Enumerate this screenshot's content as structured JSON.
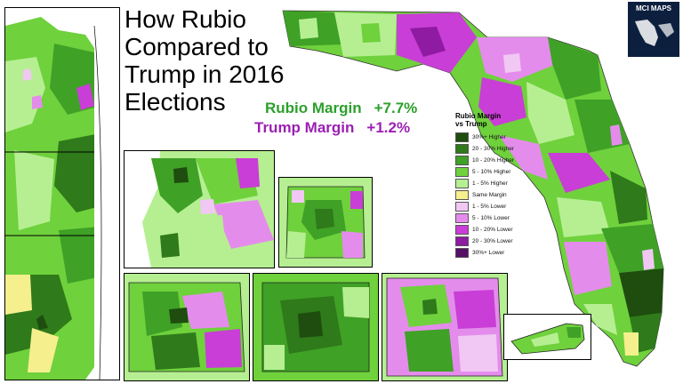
{
  "title": "How Rubio\nCompared to\nTrump in 2016\nElections",
  "metrics": {
    "rubio_label": "Rubio Margin",
    "rubio_value": "+7.7%",
    "trump_label": "Trump Margin",
    "trump_value": "+1.2%"
  },
  "legend": {
    "title": "Rubio Margin\nvs Trump",
    "items": [
      {
        "label": "30%+ Higher",
        "color": "#1e4d0f"
      },
      {
        "label": "20 - 30% Higher",
        "color": "#2f7a1a"
      },
      {
        "label": "10 - 20% Higher",
        "color": "#3fa126"
      },
      {
        "label": "5 - 10% Higher",
        "color": "#6fd13c"
      },
      {
        "label": "1 - 5% Higher",
        "color": "#b6ef92"
      },
      {
        "label": "Same Margin",
        "color": "#f6ef8e"
      },
      {
        "label": "1 - 5% Lower",
        "color": "#f0c8f3"
      },
      {
        "label": "5 - 10% Lower",
        "color": "#e48cec"
      },
      {
        "label": "10 - 20% Lower",
        "color": "#c93ed6"
      },
      {
        "label": "20 - 30% Lower",
        "color": "#8e1ba1"
      },
      {
        "label": "30%+ Lower",
        "color": "#551066"
      }
    ]
  },
  "logo": {
    "text": "MCI MAPS"
  }
}
